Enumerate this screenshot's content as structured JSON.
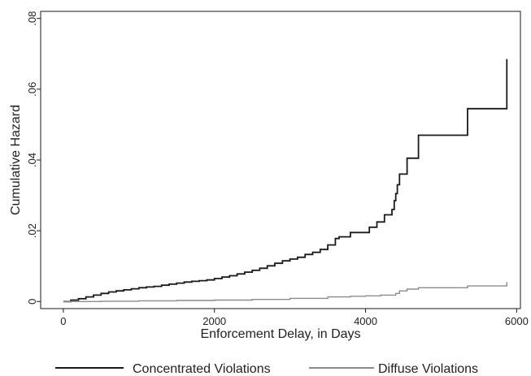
{
  "chart_data": {
    "type": "line",
    "title": "",
    "xlabel": "Enforcement Delay, in Days",
    "ylabel": "Cumulative Hazard",
    "xlim": [
      -300,
      6050
    ],
    "ylim": [
      -0.002,
      0.082
    ],
    "x_ticks": [
      0,
      2000,
      4000,
      6000
    ],
    "x_tick_labels": [
      "0",
      "2000",
      "4000",
      "6000"
    ],
    "y_ticks": [
      0,
      0.02,
      0.04,
      0.06,
      0.08
    ],
    "y_tick_labels": [
      "0",
      ".02",
      ".04",
      ".06",
      ".08"
    ],
    "grid": false,
    "legend_position": "bottom",
    "series": [
      {
        "name": "Concentrated Violations",
        "color": "#1a1a1a",
        "step": true,
        "points": [
          [
            0,
            0.0
          ],
          [
            100,
            0.0004
          ],
          [
            200,
            0.0008
          ],
          [
            300,
            0.0013
          ],
          [
            400,
            0.0018
          ],
          [
            500,
            0.0023
          ],
          [
            600,
            0.0027
          ],
          [
            700,
            0.003
          ],
          [
            800,
            0.0033
          ],
          [
            900,
            0.0036
          ],
          [
            1000,
            0.0039
          ],
          [
            1100,
            0.0041
          ],
          [
            1200,
            0.0043
          ],
          [
            1300,
            0.0046
          ],
          [
            1400,
            0.0049
          ],
          [
            1500,
            0.0052
          ],
          [
            1600,
            0.0055
          ],
          [
            1700,
            0.0057
          ],
          [
            1800,
            0.0059
          ],
          [
            1900,
            0.0061
          ],
          [
            2000,
            0.0065
          ],
          [
            2100,
            0.0069
          ],
          [
            2200,
            0.0073
          ],
          [
            2300,
            0.0078
          ],
          [
            2400,
            0.0083
          ],
          [
            2500,
            0.0088
          ],
          [
            2600,
            0.0094
          ],
          [
            2700,
            0.0101
          ],
          [
            2800,
            0.0108
          ],
          [
            2900,
            0.0115
          ],
          [
            3000,
            0.012
          ],
          [
            3100,
            0.0125
          ],
          [
            3200,
            0.0133
          ],
          [
            3300,
            0.0139
          ],
          [
            3400,
            0.0147
          ],
          [
            3500,
            0.016
          ],
          [
            3600,
            0.0178
          ],
          [
            3650,
            0.0183
          ],
          [
            3800,
            0.0195
          ],
          [
            4050,
            0.021
          ],
          [
            4150,
            0.0225
          ],
          [
            4250,
            0.0245
          ],
          [
            4350,
            0.026
          ],
          [
            4380,
            0.0285
          ],
          [
            4400,
            0.0305
          ],
          [
            4420,
            0.033
          ],
          [
            4450,
            0.036
          ],
          [
            4550,
            0.0405
          ],
          [
            4700,
            0.047
          ],
          [
            5350,
            0.0545
          ],
          [
            5870,
            0.0685
          ]
        ]
      },
      {
        "name": "Diffuse Violations",
        "color": "#8c8c8c",
        "step": true,
        "points": [
          [
            0,
            0.0
          ],
          [
            500,
            0.0001
          ],
          [
            1000,
            0.0002
          ],
          [
            1500,
            0.0003
          ],
          [
            2000,
            0.0004
          ],
          [
            2500,
            0.0006
          ],
          [
            3000,
            0.0009
          ],
          [
            3500,
            0.0013
          ],
          [
            3800,
            0.0015
          ],
          [
            4000,
            0.0016
          ],
          [
            4200,
            0.0018
          ],
          [
            4400,
            0.0023
          ],
          [
            4450,
            0.003
          ],
          [
            4550,
            0.0035
          ],
          [
            4700,
            0.0039
          ],
          [
            5350,
            0.0044
          ],
          [
            5870,
            0.0055
          ]
        ]
      }
    ]
  }
}
